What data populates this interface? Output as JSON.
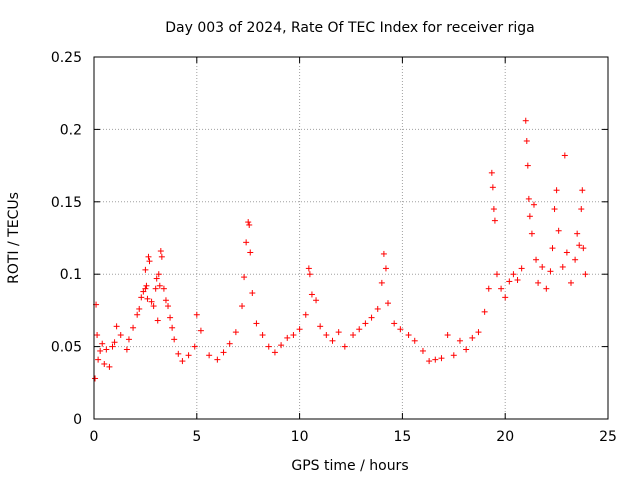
{
  "chart_data": {
    "type": "scatter",
    "title": "Day 003 of 2024, Rate Of TEC Index for receiver riga",
    "xlabel": "GPS time / hours",
    "ylabel": "ROTI / TECUs",
    "xlim": [
      0,
      25
    ],
    "ylim": [
      0,
      0.25
    ],
    "xticks": [
      0,
      5,
      10,
      15,
      20,
      25
    ],
    "yticks": [
      0,
      0.05,
      0.1,
      0.15,
      0.2,
      0.25
    ],
    "xtick_labels": [
      "0",
      "5",
      "10",
      "15",
      "20",
      "25"
    ],
    "ytick_labels": [
      "0",
      "0.05",
      "0.1",
      "0.15",
      "0.2",
      "0.25"
    ],
    "grid": true,
    "marker": "+",
    "color": "#ff0000",
    "points": [
      [
        0.05,
        0.028
      ],
      [
        0.1,
        0.079
      ],
      [
        0.15,
        0.058
      ],
      [
        0.2,
        0.041
      ],
      [
        0.3,
        0.047
      ],
      [
        0.4,
        0.052
      ],
      [
        0.5,
        0.038
      ],
      [
        0.6,
        0.048
      ],
      [
        0.75,
        0.036
      ],
      [
        0.9,
        0.05
      ],
      [
        1.0,
        0.053
      ],
      [
        1.1,
        0.064
      ],
      [
        1.3,
        0.058
      ],
      [
        1.6,
        0.048
      ],
      [
        1.7,
        0.055
      ],
      [
        1.9,
        0.063
      ],
      [
        2.1,
        0.072
      ],
      [
        2.2,
        0.076
      ],
      [
        2.3,
        0.084
      ],
      [
        2.4,
        0.088
      ],
      [
        2.5,
        0.09
      ],
      [
        2.5,
        0.103
      ],
      [
        2.55,
        0.092
      ],
      [
        2.6,
        0.083
      ],
      [
        2.65,
        0.112
      ],
      [
        2.7,
        0.109
      ],
      [
        2.8,
        0.081
      ],
      [
        2.9,
        0.078
      ],
      [
        3.0,
        0.09
      ],
      [
        3.05,
        0.097
      ],
      [
        3.1,
        0.068
      ],
      [
        3.15,
        0.1
      ],
      [
        3.2,
        0.092
      ],
      [
        3.25,
        0.116
      ],
      [
        3.3,
        0.112
      ],
      [
        3.4,
        0.09
      ],
      [
        3.5,
        0.082
      ],
      [
        3.6,
        0.078
      ],
      [
        3.7,
        0.07
      ],
      [
        3.8,
        0.063
      ],
      [
        3.9,
        0.055
      ],
      [
        4.1,
        0.045
      ],
      [
        4.3,
        0.04
      ],
      [
        4.6,
        0.044
      ],
      [
        4.9,
        0.05
      ],
      [
        5.0,
        0.072
      ],
      [
        5.2,
        0.061
      ],
      [
        5.6,
        0.044
      ],
      [
        6.0,
        0.041
      ],
      [
        6.3,
        0.046
      ],
      [
        6.6,
        0.052
      ],
      [
        6.9,
        0.06
      ],
      [
        7.2,
        0.078
      ],
      [
        7.3,
        0.098
      ],
      [
        7.4,
        0.122
      ],
      [
        7.5,
        0.136
      ],
      [
        7.55,
        0.134
      ],
      [
        7.6,
        0.115
      ],
      [
        7.7,
        0.087
      ],
      [
        7.9,
        0.066
      ],
      [
        8.2,
        0.058
      ],
      [
        8.5,
        0.05
      ],
      [
        8.8,
        0.046
      ],
      [
        9.1,
        0.051
      ],
      [
        9.4,
        0.056
      ],
      [
        9.7,
        0.058
      ],
      [
        10.0,
        0.062
      ],
      [
        10.3,
        0.072
      ],
      [
        10.45,
        0.104
      ],
      [
        10.5,
        0.1
      ],
      [
        10.6,
        0.086
      ],
      [
        10.8,
        0.082
      ],
      [
        11.0,
        0.064
      ],
      [
        11.3,
        0.058
      ],
      [
        11.6,
        0.054
      ],
      [
        11.9,
        0.06
      ],
      [
        12.2,
        0.05
      ],
      [
        12.6,
        0.058
      ],
      [
        12.9,
        0.062
      ],
      [
        13.2,
        0.066
      ],
      [
        13.5,
        0.07
      ],
      [
        13.8,
        0.076
      ],
      [
        14.0,
        0.094
      ],
      [
        14.1,
        0.114
      ],
      [
        14.2,
        0.104
      ],
      [
        14.3,
        0.08
      ],
      [
        14.6,
        0.066
      ],
      [
        14.9,
        0.062
      ],
      [
        15.3,
        0.058
      ],
      [
        15.6,
        0.054
      ],
      [
        16.0,
        0.047
      ],
      [
        16.3,
        0.04
      ],
      [
        16.6,
        0.041
      ],
      [
        16.9,
        0.042
      ],
      [
        17.2,
        0.058
      ],
      [
        17.5,
        0.044
      ],
      [
        17.8,
        0.054
      ],
      [
        18.1,
        0.048
      ],
      [
        18.4,
        0.056
      ],
      [
        18.7,
        0.06
      ],
      [
        19.0,
        0.074
      ],
      [
        19.2,
        0.09
      ],
      [
        19.35,
        0.17
      ],
      [
        19.4,
        0.16
      ],
      [
        19.45,
        0.145
      ],
      [
        19.5,
        0.137
      ],
      [
        19.6,
        0.1
      ],
      [
        19.8,
        0.09
      ],
      [
        20.0,
        0.084
      ],
      [
        20.2,
        0.095
      ],
      [
        20.4,
        0.1
      ],
      [
        20.6,
        0.096
      ],
      [
        20.8,
        0.104
      ],
      [
        21.0,
        0.206
      ],
      [
        21.05,
        0.192
      ],
      [
        21.1,
        0.175
      ],
      [
        21.15,
        0.152
      ],
      [
        21.2,
        0.14
      ],
      [
        21.3,
        0.128
      ],
      [
        21.4,
        0.148
      ],
      [
        21.5,
        0.11
      ],
      [
        21.6,
        0.094
      ],
      [
        21.8,
        0.105
      ],
      [
        22.0,
        0.09
      ],
      [
        22.2,
        0.102
      ],
      [
        22.3,
        0.118
      ],
      [
        22.4,
        0.145
      ],
      [
        22.5,
        0.158
      ],
      [
        22.6,
        0.13
      ],
      [
        22.8,
        0.105
      ],
      [
        22.9,
        0.182
      ],
      [
        23.0,
        0.115
      ],
      [
        23.2,
        0.094
      ],
      [
        23.4,
        0.11
      ],
      [
        23.5,
        0.128
      ],
      [
        23.6,
        0.12
      ],
      [
        23.7,
        0.145
      ],
      [
        23.75,
        0.158
      ],
      [
        23.8,
        0.118
      ],
      [
        23.9,
        0.1
      ]
    ]
  }
}
